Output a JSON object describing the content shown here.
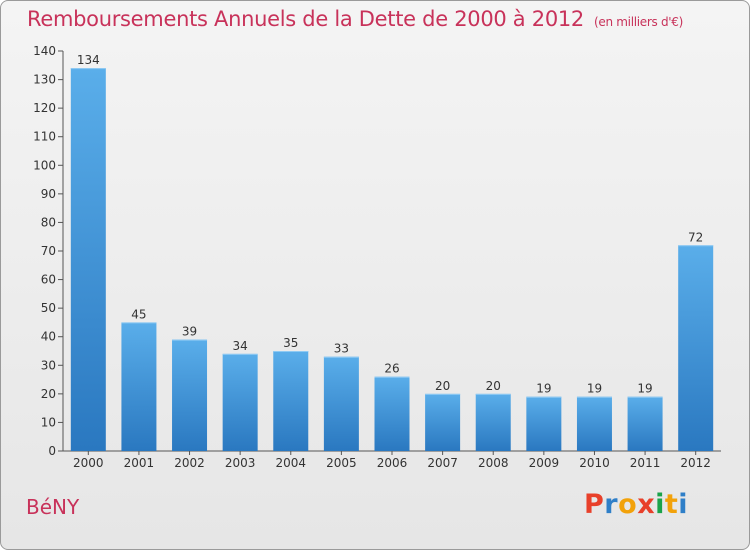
{
  "chart_data": {
    "type": "bar",
    "title": "Remboursements Annuels de la Dette de 2000 à 2012",
    "unit_label": "(en milliers d'€)",
    "categories": [
      "2000",
      "2001",
      "2002",
      "2003",
      "2004",
      "2005",
      "2006",
      "2007",
      "2008",
      "2009",
      "2010",
      "2011",
      "2012"
    ],
    "values": [
      134,
      45,
      39,
      34,
      35,
      33,
      26,
      20,
      20,
      19,
      19,
      19,
      72
    ],
    "ylim": [
      0,
      140
    ],
    "yticks": [
      0,
      10,
      20,
      30,
      40,
      50,
      60,
      70,
      80,
      90,
      100,
      110,
      120,
      130,
      140
    ],
    "xlabel": "",
    "ylabel": "",
    "grid": false,
    "bar_color_light": "#5aaeea",
    "bar_color_dark": "#2a78c0",
    "data_labels": true
  },
  "footer": {
    "commune_name": "BéNY"
  },
  "logo": {
    "text": "Proxiti",
    "letter_colors": [
      "#e8402a",
      "#2f7fc8",
      "#f2a20a",
      "#e8402a",
      "#1aa34a",
      "#f2a20a",
      "#2f7fc8"
    ]
  },
  "colors": {
    "title": "#c8325a",
    "axis": "#555555",
    "text": "#333333"
  }
}
